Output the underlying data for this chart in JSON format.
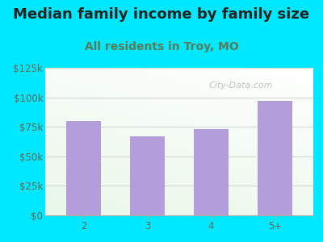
{
  "title": "Median family income by family size",
  "subtitle": "All residents in Troy, MO",
  "categories": [
    "2",
    "3",
    "4",
    "5+"
  ],
  "values": [
    80000,
    67000,
    73000,
    97000
  ],
  "bar_color": "#b39ddb",
  "background_outer": "#00e8ff",
  "title_color": "#222222",
  "subtitle_color": "#5a7a5a",
  "tick_label_color": "#5a6a5a",
  "ylim": [
    0,
    125000
  ],
  "yticks": [
    0,
    25000,
    50000,
    75000,
    100000,
    125000
  ],
  "ytick_labels": [
    "$0",
    "$25k",
    "$50k",
    "$75k",
    "$100k",
    "$125k"
  ],
  "watermark": "City-Data.com",
  "title_fontsize": 13,
  "subtitle_fontsize": 10,
  "tick_fontsize": 8.5
}
